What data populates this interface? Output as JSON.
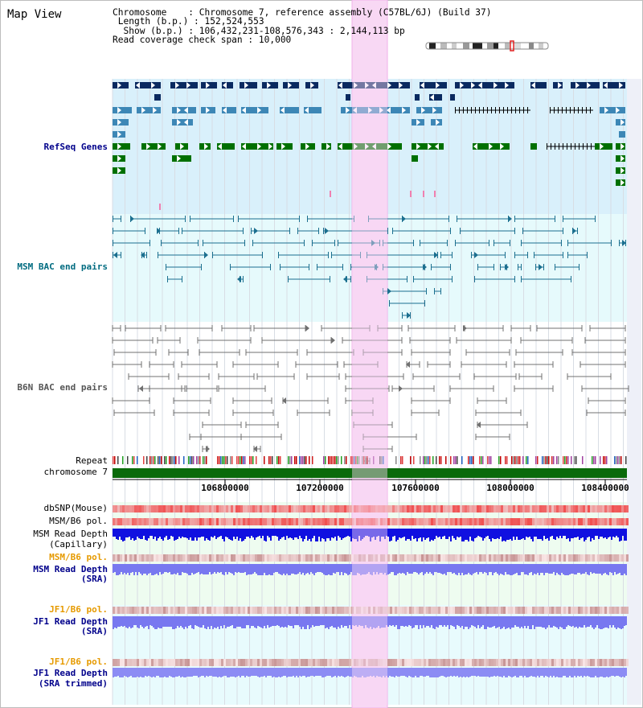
{
  "title": "Map View",
  "info": {
    "chromosome_key": "Chromosome",
    "chromosome_val": "Chromosome 7, reference assembly (C57BL/6J) (Build 37)",
    "length_key": "Length (b.p.)",
    "length_val": "152,524,553",
    "show_key": "Show (b.p.)",
    "show_val": "106,432,231-108,576,343 : 2,144,113 bp",
    "span_key": "Read coverage check span",
    "span_val": "10,000"
  },
  "tracks": {
    "refseq": "RefSeq Genes",
    "msm_bac": "MSM BAC end pairs",
    "b6n_bac": "B6N BAC end pairs",
    "repeat": "Repeat",
    "chromosome": "chromosome 7",
    "dbsnp": "dbSNP(Mouse)",
    "msm_pol1": "MSM/B6 pol.",
    "msm_depth_cap_1": "MSM Read Depth",
    "msm_depth_cap_2": "(Capillary)",
    "msm_pol2": "MSM/B6 pol.",
    "msm_depth_sra_1": "MSM Read Depth",
    "msm_depth_sra_2": "(SRA)",
    "jf1_pol1": "JF1/B6 pol.",
    "jf1_depth_1": "JF1 Read Depth",
    "jf1_depth_2": "(SRA)",
    "jf1_pol2": "JF1/B6 pol.",
    "jf1_trim_1": "JF1 Read Depth",
    "jf1_trim_2": "(SRA trimmed)"
  },
  "axis_ticks": [
    "106800000",
    "107200000",
    "107600000",
    "108000000",
    "108400000"
  ],
  "colors": {
    "gene_dark_blue": "#0a2a60",
    "gene_mid_blue": "#3d87b6",
    "gene_green": "#007000",
    "msm_bac": "#1b6f8f",
    "b6n_bac": "#707070",
    "highlight": "#f8d8f4",
    "refseq_bg": "#d9f0fb",
    "msm_bg": "#e6fafc",
    "depth_bg": "#eefcf0",
    "snp_red": "#f06060",
    "depth_blue": "#1010e0",
    "depth_lavender": "#7878f0",
    "label_blue": "#00008b",
    "label_orange": "#e69a00",
    "label_teal": "#006b80"
  }
}
